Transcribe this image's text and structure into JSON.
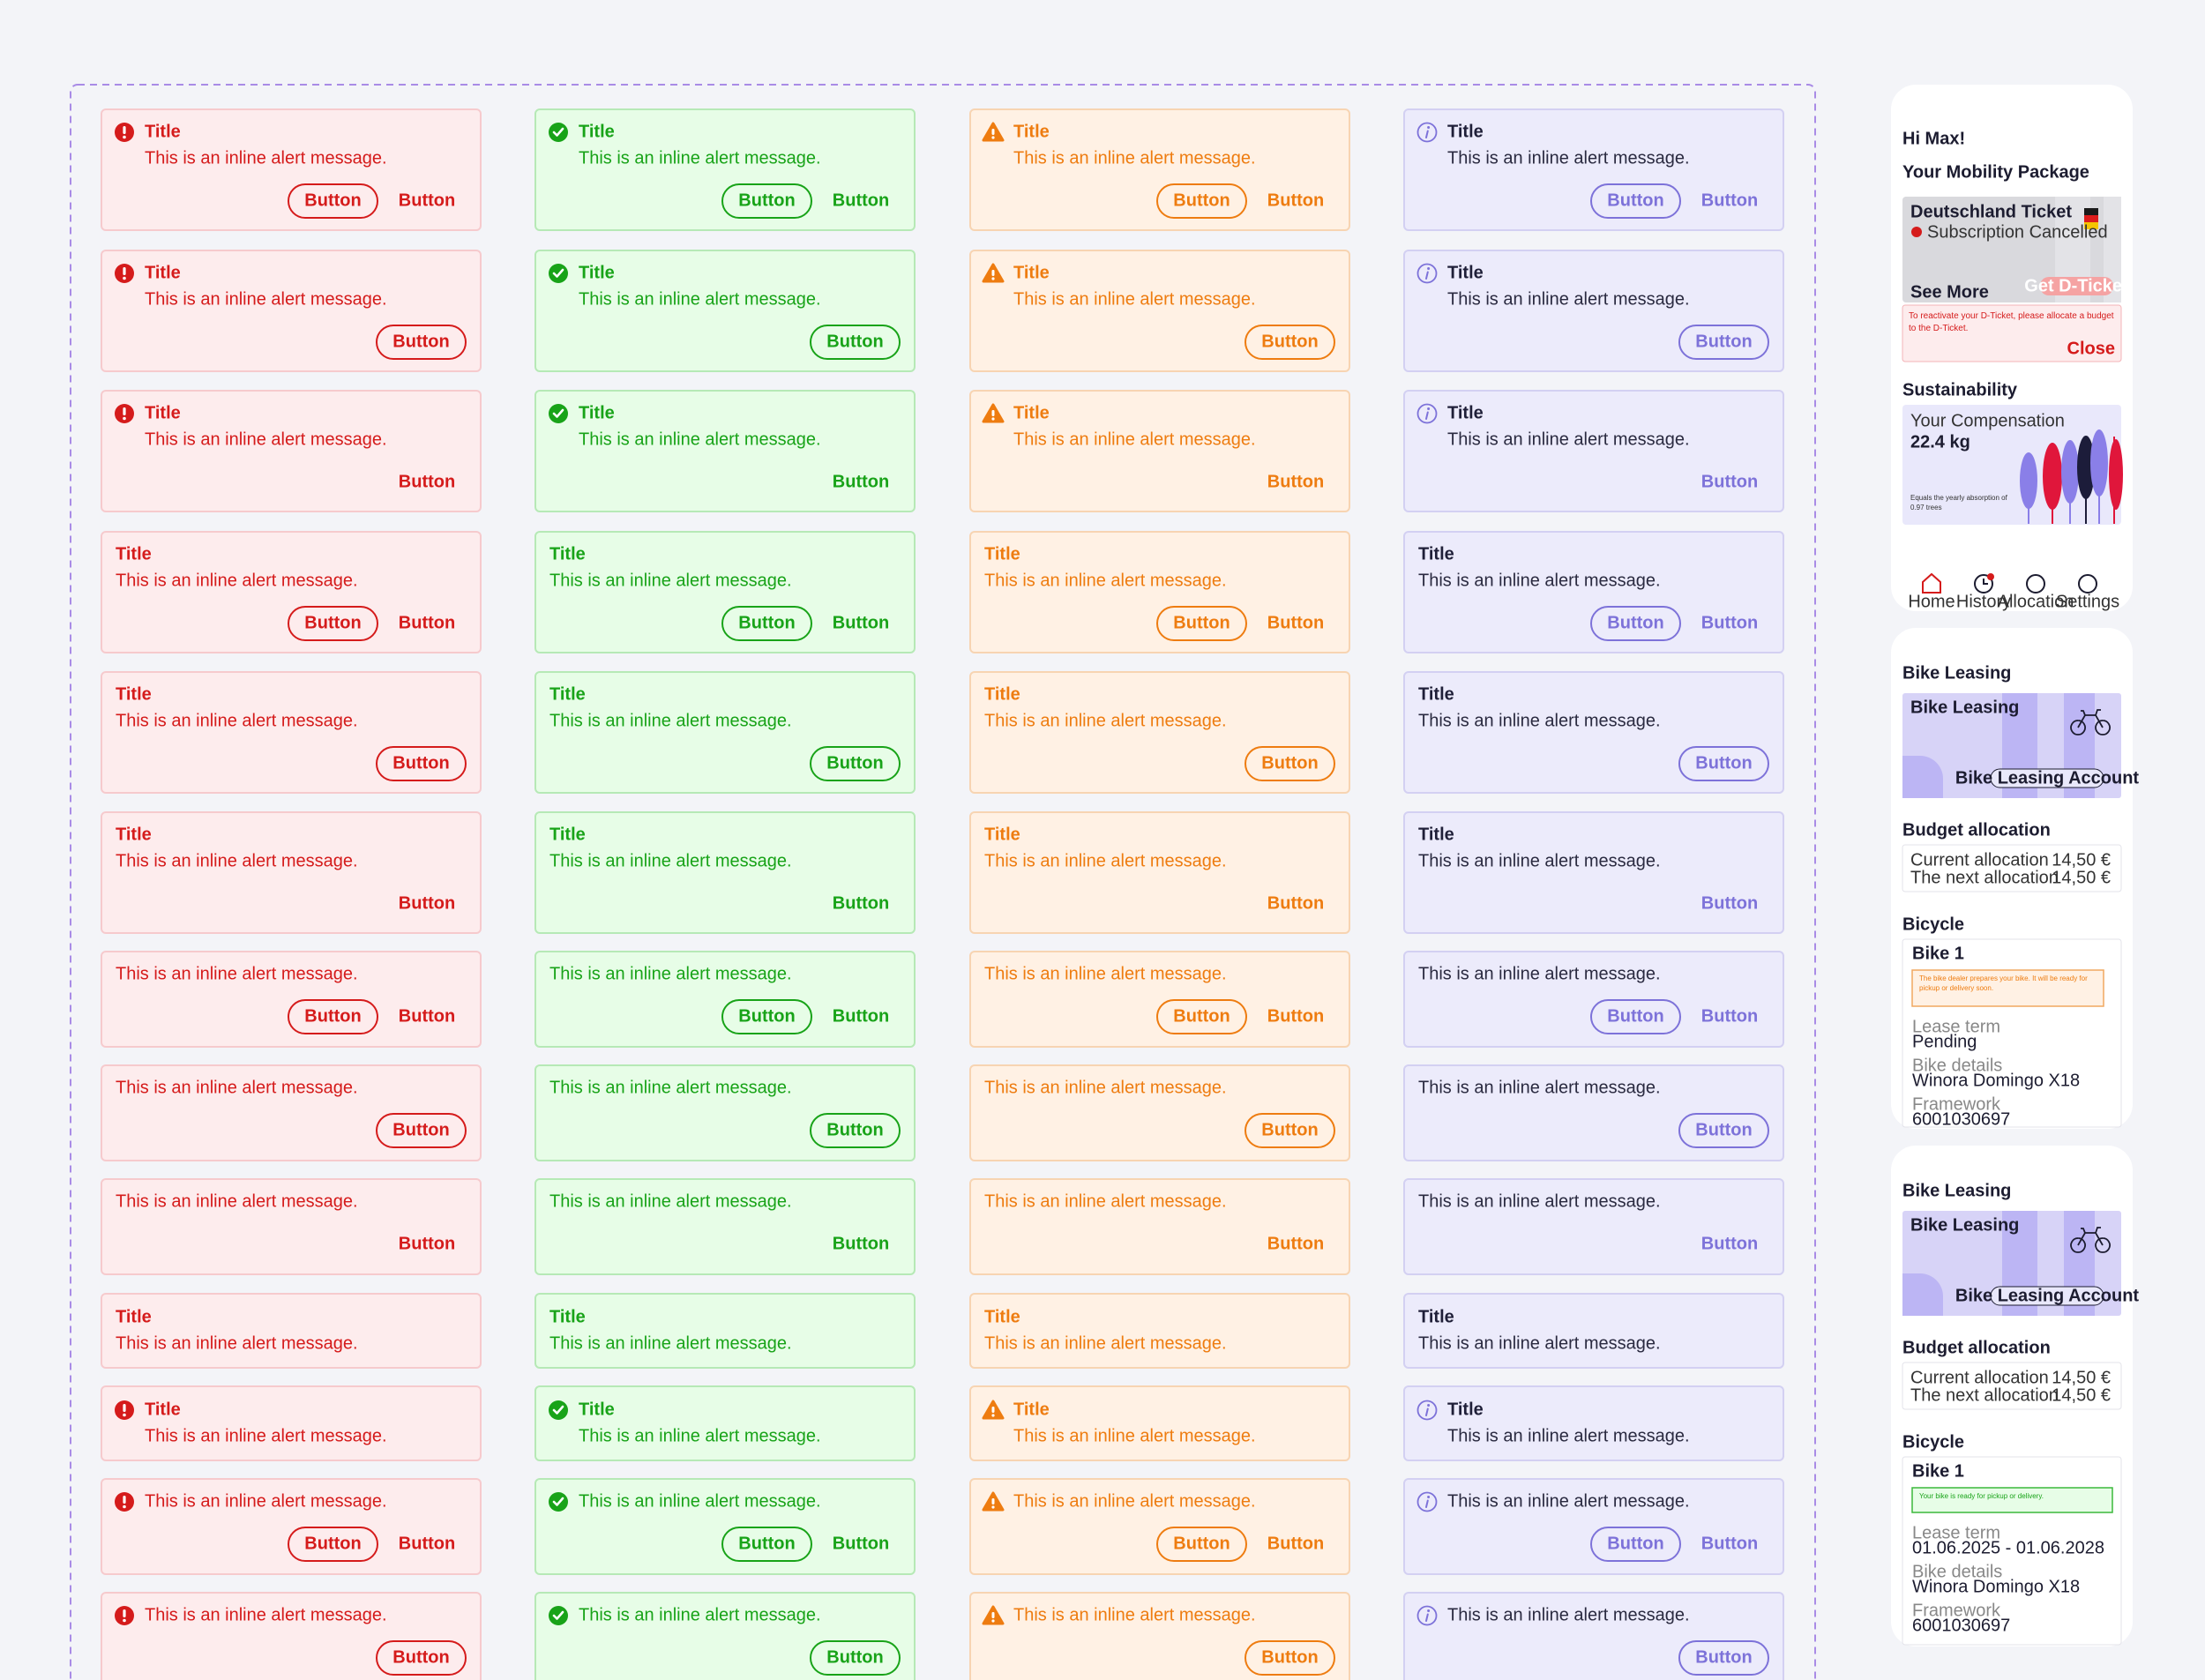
{
  "alerts": {
    "title": "Title",
    "message": "This is an inline alert message.",
    "button": "Button",
    "variants": [
      {
        "icon": "error",
        "background": "#fdeced",
        "border": "#f6cacd",
        "title_color": "#d51b1b",
        "text_color": "#d51b1b",
        "accent": "#d51b1b"
      },
      {
        "icon": "success",
        "background": "#e7fde7",
        "border": "#b6e9b6",
        "title_color": "#18a318",
        "text_color": "#18a318",
        "accent": "#18a318"
      },
      {
        "icon": "warning",
        "background": "#fff1e4",
        "border": "#f7d4b2",
        "title_color": "#ee7c10",
        "text_color": "#ee7c10",
        "accent": "#ee7c10"
      },
      {
        "icon": "info",
        "background": "#ecebfb",
        "border": "#d3d0f2",
        "title_color": "#1f1f38",
        "text_color": "#2a2a40",
        "accent": "#7d72d9"
      }
    ]
  },
  "home": {
    "greeting": "Hi Max!",
    "package_heading": "Your Mobility Package",
    "ticket_name": "Deutschland Ticket",
    "ticket_status": "Subscription Cancelled",
    "see_more": "See More",
    "get_ticket": "Get D-Ticket",
    "notice": "To reactivate your D-Ticket, please allocate a budget to the D-Ticket.",
    "close": "Close",
    "sustainability": "Sustainability",
    "compensation_label": "Your Compensation",
    "compensation_value": "22.4 kg",
    "compensation_note": "Equals the yearly absorption of 0.97 trees",
    "nav": [
      "Home",
      "History",
      "Allocation",
      "Settings"
    ]
  },
  "bike_screens": [
    {
      "heading": "Bike Leasing",
      "card_title": "Bike Leasing",
      "card_button": "Bike Leasing Account",
      "budget_heading": "Budget allocation",
      "budget_rows": [
        [
          "Current allocation",
          "14,50 €"
        ],
        [
          "The next allocation",
          "14,50 €"
        ]
      ],
      "bicycle_heading": "Bicycle",
      "bike_name": "Bike 1",
      "status": "The bike dealer prepares your bike. It will be ready for pickup or delivery soon.",
      "status_background": "#fff1e4",
      "status_border": "#f0a860",
      "status_color": "#ee7c10",
      "details": [
        [
          "Lease term",
          "Pending"
        ],
        [
          "Bike details",
          "Winora Domingo X18"
        ],
        [
          "Framework",
          "6001030697"
        ]
      ]
    },
    {
      "heading": "Bike Leasing",
      "card_title": "Bike Leasing",
      "card_button": "Bike Leasing Account",
      "budget_heading": "Budget allocation",
      "budget_rows": [
        [
          "Current allocation",
          "14,50 €"
        ],
        [
          "The next allocation",
          "14,50 €"
        ]
      ],
      "bicycle_heading": "Bicycle",
      "bike_name": "Bike 1",
      "status": "Your bike is ready for pickup or delivery.",
      "status_background": "#e7fde7",
      "status_border": "#3bb83b",
      "status_color": "#18a318",
      "details": [
        [
          "Lease term",
          "01.06.2025 - 01.06.2028"
        ],
        [
          "Bike details",
          "Winora Domingo X18"
        ],
        [
          "Framework",
          "6001030697"
        ]
      ]
    }
  ]
}
